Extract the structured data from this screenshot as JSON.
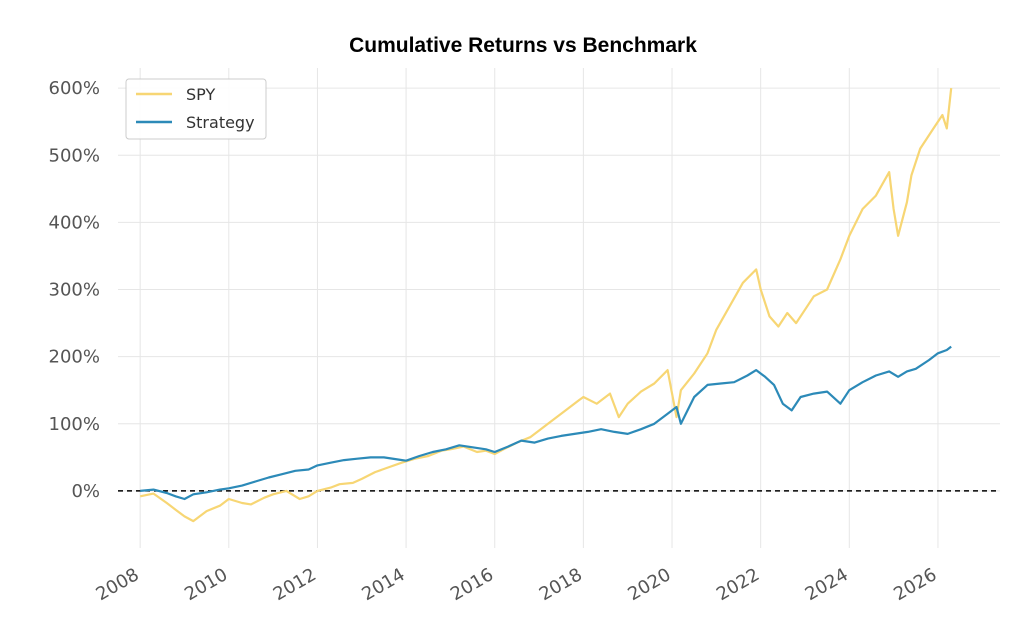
{
  "chart_data": {
    "type": "line",
    "title": "Cumulative Returns vs Benchmark",
    "xlabel": "",
    "ylabel": "",
    "xlim": [
      2007.5,
      2027.4
    ],
    "ylim": [
      -85,
      630
    ],
    "x_ticks": [
      2008,
      2010,
      2012,
      2014,
      2016,
      2018,
      2020,
      2022,
      2024,
      2026
    ],
    "x_tick_labels": [
      "2008",
      "2010",
      "2012",
      "2014",
      "2016",
      "2018",
      "2020",
      "2022",
      "2024",
      "2026"
    ],
    "y_ticks": [
      0,
      100,
      200,
      300,
      400,
      500,
      600
    ],
    "y_tick_labels": [
      "0%",
      "100%",
      "200%",
      "300%",
      "400%",
      "500%",
      "600%"
    ],
    "grid": true,
    "legend_position": "top-left",
    "reference_line": {
      "y": 0,
      "style": "dashed",
      "color": "#000000"
    },
    "series": [
      {
        "name": "SPY",
        "color": "#F7D674",
        "x": [
          2008.0,
          2008.3,
          2008.6,
          2008.8,
          2009.0,
          2009.2,
          2009.5,
          2009.8,
          2010.0,
          2010.3,
          2010.5,
          2010.8,
          2011.0,
          2011.3,
          2011.6,
          2011.8,
          2012.0,
          2012.3,
          2012.5,
          2012.8,
          2013.0,
          2013.3,
          2013.6,
          2013.9,
          2014.2,
          2014.5,
          2014.8,
          2015.0,
          2015.3,
          2015.6,
          2015.8,
          2016.0,
          2016.2,
          2016.5,
          2016.8,
          2017.0,
          2017.3,
          2017.6,
          2017.9,
          2018.0,
          2018.3,
          2018.6,
          2018.8,
          2019.0,
          2019.3,
          2019.6,
          2019.9,
          2020.1,
          2020.2,
          2020.5,
          2020.8,
          2021.0,
          2021.3,
          2021.6,
          2021.9,
          2022.0,
          2022.2,
          2022.4,
          2022.6,
          2022.8,
          2023.0,
          2023.2,
          2023.5,
          2023.8,
          2024.0,
          2024.3,
          2024.6,
          2024.9,
          2025.0,
          2025.1,
          2025.3,
          2025.4,
          2025.6,
          2025.9,
          2026.1,
          2026.2,
          2026.3
        ],
        "values": [
          -8,
          -4,
          -18,
          -28,
          -38,
          -45,
          -30,
          -22,
          -12,
          -18,
          -20,
          -10,
          -5,
          0,
          -12,
          -8,
          0,
          5,
          10,
          12,
          18,
          28,
          35,
          42,
          48,
          52,
          60,
          62,
          66,
          58,
          60,
          55,
          62,
          72,
          80,
          90,
          105,
          120,
          135,
          140,
          130,
          145,
          110,
          130,
          148,
          160,
          180,
          110,
          150,
          175,
          205,
          240,
          275,
          310,
          330,
          300,
          260,
          245,
          265,
          250,
          270,
          290,
          300,
          345,
          380,
          420,
          440,
          475,
          420,
          380,
          430,
          470,
          510,
          540,
          560,
          540,
          600
        ]
      },
      {
        "name": "Strategy",
        "color": "#2C8AB8",
        "x": [
          2008.0,
          2008.3,
          2008.6,
          2008.8,
          2009.0,
          2009.2,
          2009.5,
          2009.8,
          2010.0,
          2010.3,
          2010.6,
          2010.9,
          2011.2,
          2011.5,
          2011.8,
          2012.0,
          2012.3,
          2012.6,
          2012.9,
          2013.2,
          2013.5,
          2013.8,
          2014.0,
          2014.3,
          2014.6,
          2014.9,
          2015.2,
          2015.5,
          2015.8,
          2016.0,
          2016.3,
          2016.6,
          2016.9,
          2017.2,
          2017.5,
          2017.8,
          2018.1,
          2018.4,
          2018.7,
          2019.0,
          2019.3,
          2019.6,
          2019.9,
          2020.1,
          2020.2,
          2020.5,
          2020.8,
          2021.1,
          2021.4,
          2021.7,
          2021.9,
          2022.1,
          2022.3,
          2022.5,
          2022.7,
          2022.9,
          2023.2,
          2023.5,
          2023.8,
          2024.0,
          2024.3,
          2024.6,
          2024.9,
          2025.1,
          2025.3,
          2025.5,
          2025.8,
          2026.0,
          2026.2,
          2026.3
        ],
        "values": [
          0,
          2,
          -3,
          -8,
          -12,
          -5,
          -2,
          2,
          4,
          8,
          14,
          20,
          25,
          30,
          32,
          38,
          42,
          46,
          48,
          50,
          50,
          47,
          45,
          52,
          58,
          62,
          68,
          65,
          62,
          58,
          66,
          75,
          72,
          78,
          82,
          85,
          88,
          92,
          88,
          85,
          92,
          100,
          115,
          125,
          100,
          140,
          158,
          160,
          162,
          172,
          180,
          170,
          158,
          130,
          120,
          140,
          145,
          148,
          130,
          150,
          162,
          172,
          178,
          170,
          178,
          182,
          195,
          205,
          210,
          215
        ]
      }
    ]
  }
}
